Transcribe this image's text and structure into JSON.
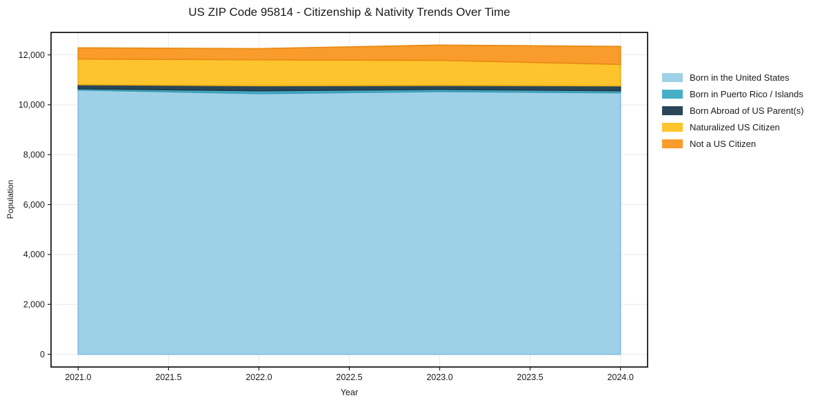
{
  "chart_data": {
    "type": "area",
    "stacked": true,
    "title": "US ZIP Code 95814 - Citizenship & Nativity Trends Over Time",
    "xlabel": "Year",
    "ylabel": "Population",
    "x": [
      2021,
      2022,
      2023,
      2024
    ],
    "series": [
      {
        "name": "Born in the United States",
        "color": "#9ed1e8",
        "edge": "#85bfda",
        "values": [
          10590,
          10450,
          10530,
          10480
        ]
      },
      {
        "name": "Born in Puerto Rico / Islands",
        "color": "#46aec7",
        "edge": "#3a9cb4",
        "values": [
          55,
          110,
          85,
          85
        ]
      },
      {
        "name": "Born Abroad of US Parent(s)",
        "color": "#2a4759",
        "edge": "#203a4a",
        "values": [
          165,
          205,
          165,
          195
        ]
      },
      {
        "name": "Naturalized US Citizen",
        "color": "#fec42d",
        "edge": "#f0b115",
        "values": [
          1025,
          1040,
          1000,
          860
        ]
      },
      {
        "name": "Not a US Citizen",
        "color": "#f99c2b",
        "edge": "#ea8b16",
        "values": [
          445,
          445,
          610,
          720
        ]
      }
    ],
    "totals": [
      12280,
      12250,
      12390,
      12340
    ],
    "xlim": [
      2020.85,
      2024.15
    ],
    "ylim": [
      -510,
      12900
    ],
    "xticks": {
      "values": [
        2021.0,
        2021.5,
        2022.0,
        2022.5,
        2023.0,
        2023.5,
        2024.0
      ],
      "labels": [
        "2021.0",
        "2021.5",
        "2022.0",
        "2022.5",
        "2023.0",
        "2023.5",
        "2024.0"
      ]
    },
    "yticks": {
      "values": [
        0,
        2000,
        4000,
        6000,
        8000,
        10000,
        12000
      ],
      "labels": [
        "0",
        "2,000",
        "4,000",
        "6,000",
        "8,000",
        "10,000",
        "12,000"
      ]
    },
    "grid": true,
    "legend_position": "right",
    "colors": {
      "grid": "#e9e9e9",
      "spine": "#1a1a1a",
      "tick": "#1a1a1a",
      "background": "#ffffff"
    }
  }
}
